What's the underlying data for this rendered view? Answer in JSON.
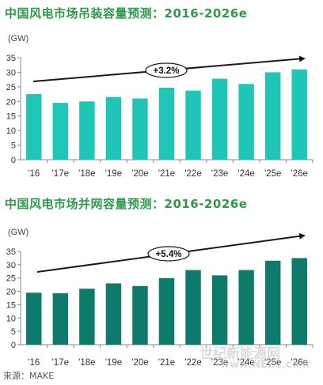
{
  "chart_data": [
    {
      "type": "bar",
      "title": "中国风电市场吊装容量预测：2016-2026e",
      "ylabel": "(GW)",
      "categories": [
        "'16",
        "'17e",
        "'18e",
        "'19e",
        "'20e",
        "'21e",
        "'22e",
        "'23e",
        "'24e",
        "'25e",
        "'26e"
      ],
      "values": [
        22.5,
        19.5,
        20,
        21.5,
        21,
        24.7,
        23.7,
        27.8,
        26,
        30,
        31
      ],
      "ylim": [
        0,
        35
      ],
      "yticks": [
        0,
        5,
        10,
        15,
        20,
        25,
        30,
        35
      ],
      "bar_color": "#1fc6b8",
      "annotation": "+3.2%"
    },
    {
      "type": "bar",
      "title": "中国风电市场并网容量预测：2016-2026e",
      "ylabel": "(GW)",
      "categories": [
        "'16",
        "'17e",
        "'18e",
        "'19e",
        "'20e",
        "'21e",
        "'22e",
        "'23e",
        "'24e",
        "'25e",
        "'26e"
      ],
      "values": [
        19.5,
        19.3,
        21,
        23,
        22,
        25,
        28,
        26,
        28,
        31.5,
        32.5
      ],
      "ylim": [
        0,
        35
      ],
      "yticks": [
        0,
        5,
        10,
        15,
        20,
        25,
        30,
        35
      ],
      "bar_color": "#0d7a6a",
      "annotation": "+5.4%"
    }
  ],
  "source": "来源：MAKE",
  "watermark": {
    "line1": "世纪新能源网",
    "line2": "www.NE21.com"
  }
}
